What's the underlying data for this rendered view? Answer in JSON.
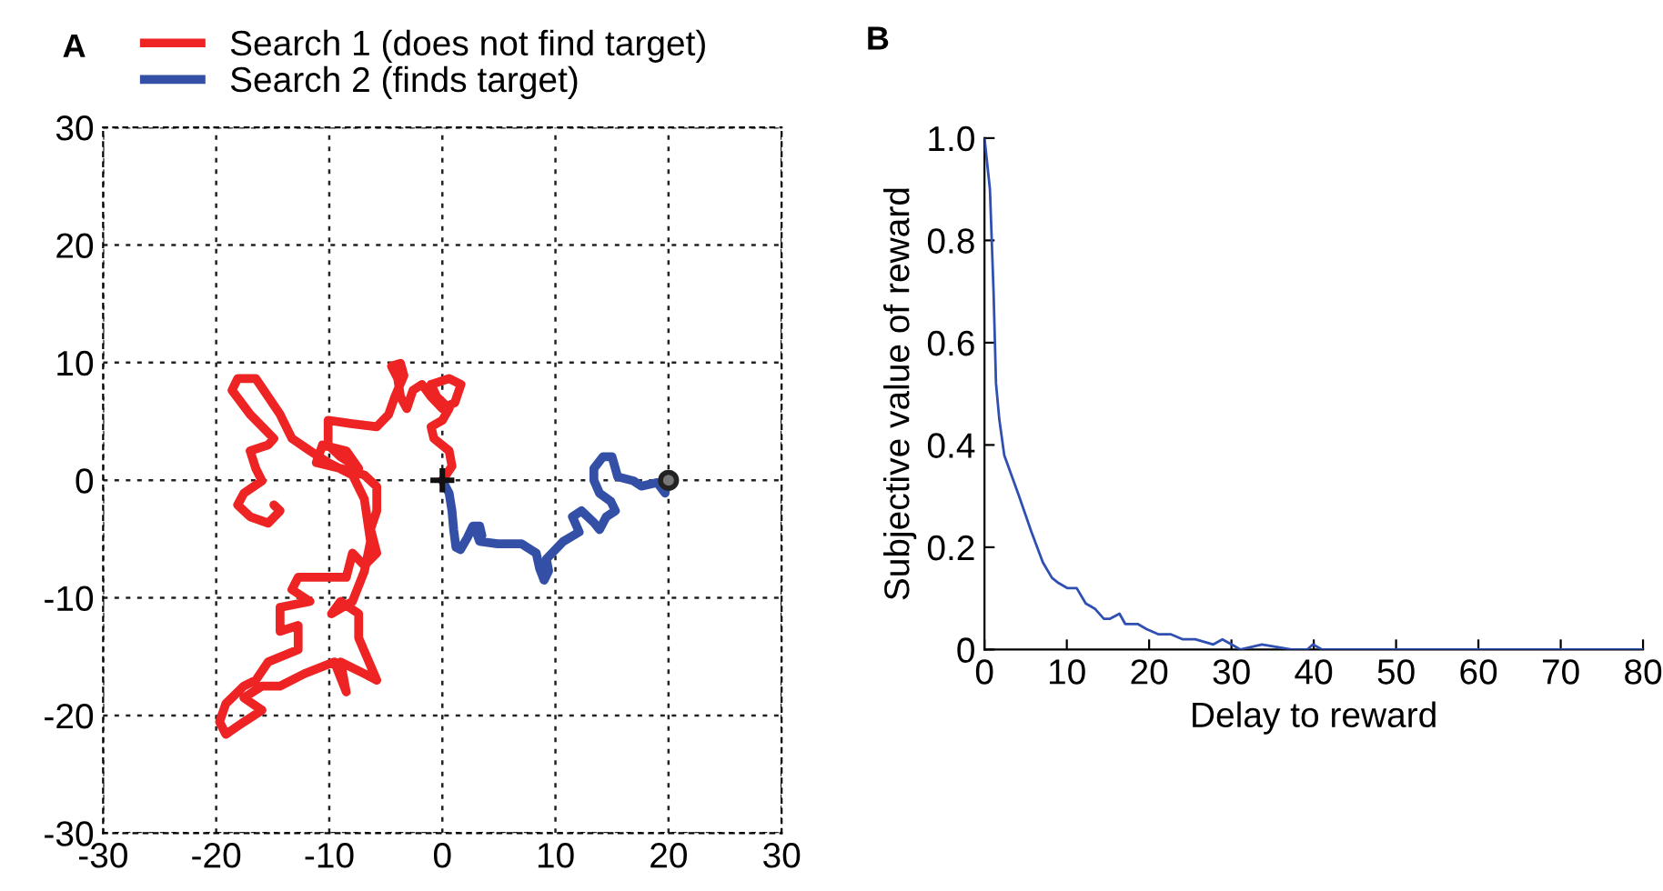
{
  "chart_data": [
    {
      "type": "line",
      "title": "A",
      "xlim": [
        -30,
        30
      ],
      "ylim": [
        -30,
        30
      ],
      "xticks": [
        -30,
        -20,
        -10,
        0,
        10,
        20,
        30
      ],
      "yticks": [
        -30,
        -20,
        -10,
        0,
        10,
        20,
        30
      ],
      "grid": true,
      "legend": "top left",
      "line_style": "solid",
      "marker": "none",
      "series": [
        {
          "name": "Search 1 (does not find target)",
          "color": "#ee2424",
          "x": [
            0,
            0.85,
            0.6,
            -0.75,
            -1.0,
            0,
            0.6,
            -0.5,
            -1.0,
            0.6,
            1.65,
            1.1,
            0,
            -1.0,
            -1.8,
            -2.6,
            -3.15,
            -3.7,
            -3.95,
            -4.5,
            -3.7,
            -3.4,
            -4.2,
            -4.75,
            -5.8,
            -7.95,
            -10.1,
            -10.1,
            -9.0,
            -7.4,
            -8.5,
            -10.6,
            -11.15,
            -9.0,
            -6.9,
            -5.8,
            -5.8,
            -6.35,
            -5.8,
            -6.9,
            -7.95,
            -8.5,
            -10.1,
            -12.75,
            -13.3,
            -11.7,
            -14.35,
            -14.35,
            -12.75,
            -12.75,
            -15.4,
            -16.5,
            -17.55,
            -19.15,
            -19.7,
            -19.15,
            -17.55,
            -15.95,
            -17.55,
            -15.95,
            -14.35,
            -12.2,
            -9.55,
            -8.5,
            -9.0,
            -6.9,
            -5.8,
            -7.4,
            -7.4,
            -9.0,
            -9.8,
            -7.95,
            -6.9,
            -6.35,
            -6.9,
            -7.95,
            -10.1,
            -11.7,
            -13.3,
            -14.35,
            -16.5,
            -18.1,
            -18.6,
            -17.0,
            -14.9,
            -15.4,
            -17.0,
            -16.5,
            -15.95,
            -17.55,
            -18.1,
            -17.0,
            -15.4,
            -14.35,
            -14.9
          ],
          "values": [
            0,
            1.2,
            2.5,
            3.55,
            4.55,
            5.1,
            6.1,
            7.1,
            8.15,
            8.65,
            8.15,
            6.6,
            6.1,
            7.1,
            8.15,
            7.65,
            6.1,
            7.1,
            8.65,
            9.7,
            9.95,
            8.9,
            7.1,
            5.6,
            4.55,
            4.8,
            5.1,
            3.0,
            2.0,
            1.0,
            2.5,
            3.0,
            1.5,
            1.0,
            0.45,
            -0.55,
            -2.6,
            -4.15,
            -6.2,
            -7.25,
            -6.2,
            -8.25,
            -8.25,
            -8.25,
            -9.3,
            -10.3,
            -10.8,
            -12.85,
            -12.35,
            -14.4,
            -15.45,
            -17.0,
            -17.5,
            -19.0,
            -20.55,
            -21.6,
            -20.55,
            -19.55,
            -18.5,
            -17.5,
            -17.5,
            -16.45,
            -15.45,
            -18.0,
            -15.45,
            -16.45,
            -17.0,
            -13.4,
            -11.35,
            -10.3,
            -11.35,
            -10.3,
            -7.75,
            -5.2,
            -1.6,
            0.45,
            1.5,
            2.5,
            3.55,
            5.6,
            8.65,
            8.65,
            7.65,
            5.6,
            3.55,
            3.0,
            2.5,
            1.0,
            -0.05,
            -1.1,
            -2.1,
            -3.1,
            -3.65,
            -2.6,
            -2.1
          ]
        },
        {
          "name": "Search 2 (finds target)",
          "color": "#3350a6",
          "x": [
            0,
            0.6,
            0.85,
            1.0,
            1.2,
            1.6,
            2.2,
            2.7,
            3.3,
            3.5,
            3.0,
            3.3,
            4.9,
            7.0,
            8.3,
            8.6,
            9.0,
            9.4,
            9.2,
            10.7,
            12.1,
            11.5,
            12.3,
            13.4,
            13.9,
            14.5,
            15.3,
            14.9,
            13.9,
            13.4,
            13.4,
            14.2,
            15.0,
            15.3,
            15.5,
            16.9,
            17.6,
            19.0,
            19.7,
            19.8
          ],
          "values": [
            0,
            -1.1,
            -2.6,
            -4.2,
            -5.7,
            -5.9,
            -4.9,
            -3.9,
            -3.9,
            -4.7,
            -4.4,
            -5.2,
            -5.4,
            -5.4,
            -6.2,
            -7.5,
            -8.5,
            -7.7,
            -6.7,
            -5.2,
            -4.4,
            -3.1,
            -2.6,
            -3.6,
            -4.2,
            -3.1,
            -2.6,
            -1.8,
            -1.1,
            0,
            1.0,
            2.0,
            2.0,
            1.0,
            0.3,
            -0.05,
            -0.5,
            -0.2,
            -1.1,
            0
          ]
        },
        {
          "type": "scatter",
          "marker": "cross",
          "color": "#111111",
          "x": [
            0
          ],
          "values": [
            0
          ]
        },
        {
          "type": "scatter",
          "marker": "circle",
          "color": "#222222",
          "x": [
            20
          ],
          "values": [
            0
          ]
        }
      ]
    },
    {
      "type": "line",
      "title": "B",
      "xlabel": "Delay to reward",
      "ylabel": "Subjective value of reward",
      "xlim": [
        0,
        80
      ],
      "ylim": [
        0,
        1.0
      ],
      "xticks": [
        0,
        10,
        20,
        30,
        40,
        50,
        60,
        70,
        80
      ],
      "yticks": [
        0,
        0.2,
        0.4,
        0.6,
        0.8,
        {
          "value": 1.0,
          "label": "1.0"
        }
      ],
      "grid": false,
      "line_style": "solid",
      "marker": "none",
      "series": [
        {
          "color": "#2f4fb3",
          "x": [
            0,
            0.66,
            1.1,
            1.4,
            1.8,
            2.4,
            4.2,
            5.7,
            7.1,
            8.2,
            9.0,
            10.1,
            11.2,
            12.3,
            13.4,
            14.5,
            15.2,
            16.4,
            17.1,
            18.6,
            19.7,
            21.1,
            22.6,
            24.1,
            25.6,
            27.8,
            28.9,
            30.0,
            31.1,
            33.7,
            37.3,
            39.2,
            39.9,
            41.0,
            80
          ],
          "values": [
            1.0,
            0.9,
            0.7,
            0.52,
            0.45,
            0.38,
            0.3,
            0.23,
            0.17,
            0.14,
            0.13,
            0.12,
            0.12,
            0.09,
            0.08,
            0.06,
            0.06,
            0.07,
            0.05,
            0.05,
            0.04,
            0.03,
            0.03,
            0.02,
            0.02,
            0.01,
            0.02,
            0.01,
            0,
            0.01,
            0,
            0,
            0.01,
            0,
            0
          ]
        }
      ]
    }
  ]
}
